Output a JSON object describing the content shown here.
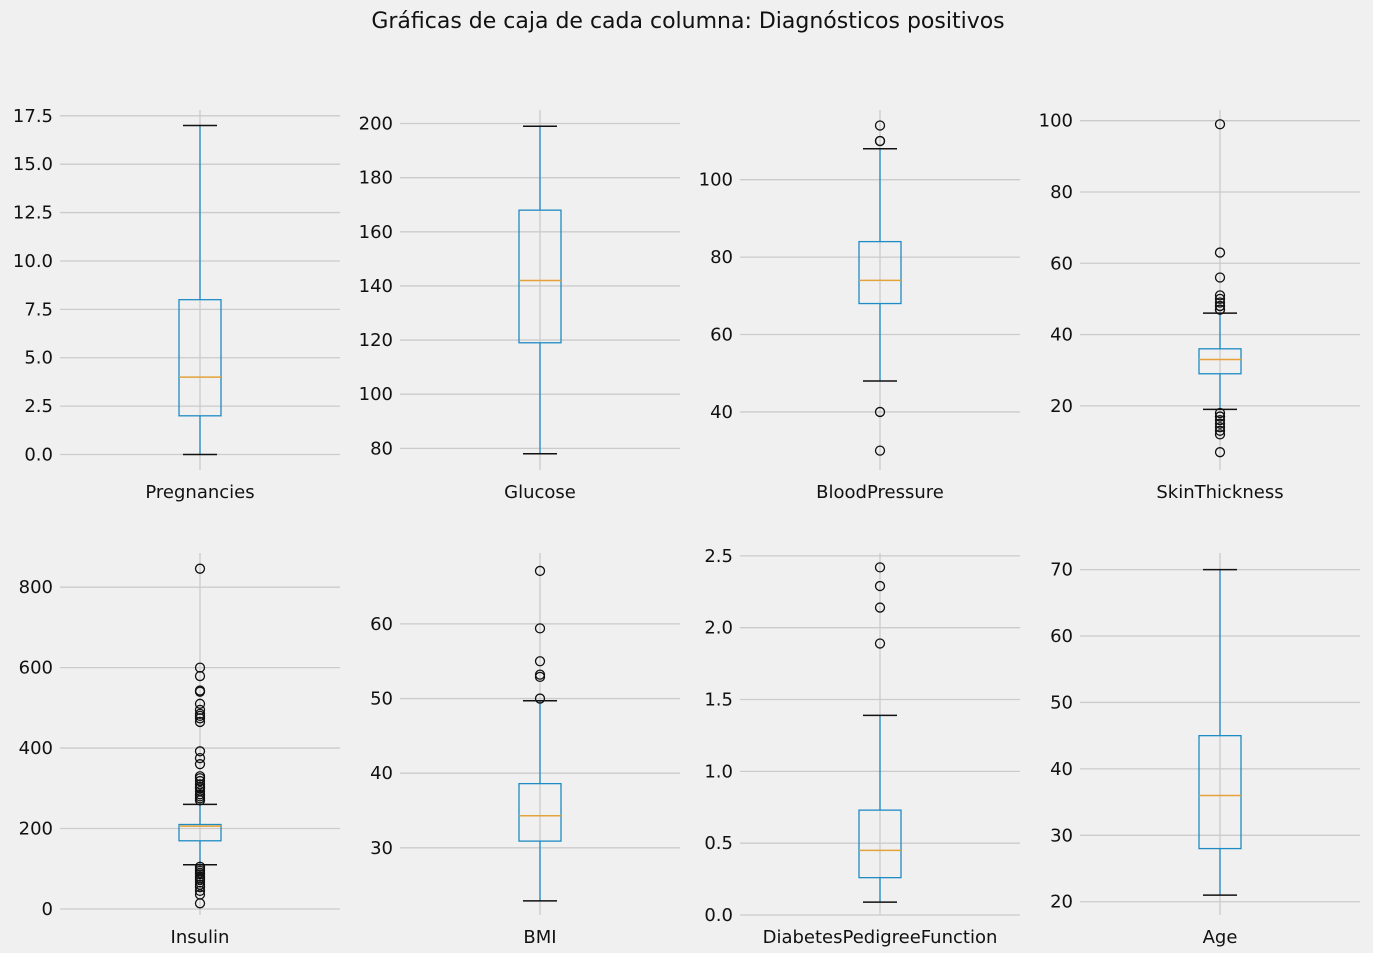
{
  "title": "Gráficas de caja de cada columna: Diagnósticos positivos",
  "colors": {
    "background": "#f0f0f0",
    "grid": "#cbcbcb",
    "box": "#1f8bc4",
    "median": "#e3a23a",
    "cap": "#111111"
  },
  "chart_data": [
    {
      "type": "box",
      "label": "Pregnancies",
      "ylim": [
        -0.8,
        17.8
      ],
      "ticks": [
        0.0,
        2.5,
        5.0,
        7.5,
        10.0,
        12.5,
        15.0,
        17.5
      ],
      "tick_labels": [
        "0.0",
        "2.5",
        "5.0",
        "7.5",
        "10.0",
        "12.5",
        "15.0",
        "17.5"
      ],
      "q1": 2,
      "median": 4,
      "q3": 8,
      "whisker_low": 0,
      "whisker_high": 17,
      "outliers": []
    },
    {
      "type": "box",
      "label": "Glucose",
      "ylim": [
        72,
        205
      ],
      "ticks": [
        80,
        100,
        120,
        140,
        160,
        180,
        200
      ],
      "tick_labels": [
        "80",
        "100",
        "120",
        "140",
        "160",
        "180",
        "200"
      ],
      "q1": 119,
      "median": 142,
      "q3": 168,
      "whisker_low": 78,
      "whisker_high": 199,
      "outliers": []
    },
    {
      "type": "box",
      "label": "BloodPressure",
      "ylim": [
        25,
        118
      ],
      "ticks": [
        40,
        60,
        80,
        100
      ],
      "tick_labels": [
        "40",
        "60",
        "80",
        "100"
      ],
      "q1": 68,
      "median": 74,
      "q3": 84,
      "whisker_low": 48,
      "whisker_high": 108,
      "outliers": [
        30,
        40,
        110,
        110,
        114
      ]
    },
    {
      "type": "box",
      "label": "SkinThickness",
      "ylim": [
        2,
        103
      ],
      "ticks": [
        20,
        40,
        60,
        80,
        100
      ],
      "tick_labels": [
        "20",
        "40",
        "60",
        "80",
        "100"
      ],
      "q1": 29,
      "median": 33,
      "q3": 36,
      "whisker_low": 19,
      "whisker_high": 46,
      "outliers": [
        7,
        12,
        13,
        14,
        15,
        16,
        17,
        17,
        18,
        47,
        47,
        48,
        48,
        49,
        50,
        51,
        56,
        63,
        99
      ]
    },
    {
      "type": "box",
      "label": "Insulin",
      "ylim": [
        -15,
        885
      ],
      "ticks": [
        0,
        200,
        400,
        600,
        800
      ],
      "tick_labels": [
        "0",
        "200",
        "400",
        "600",
        "800"
      ],
      "q1": 169.5,
      "median": 206,
      "q3": 210,
      "whisker_low": 110,
      "whisker_high": 260,
      "outliers": [
        14,
        36,
        45,
        54,
        60,
        66,
        72,
        76,
        80,
        86,
        90,
        95,
        100,
        105,
        270,
        275,
        280,
        285,
        293,
        300,
        304,
        310,
        318,
        325,
        330,
        360,
        375,
        392,
        465,
        474,
        480,
        485,
        495,
        510,
        540,
        543,
        579,
        600,
        846
      ]
    },
    {
      "type": "box",
      "label": "BMI",
      "ylim": [
        21,
        69.5
      ],
      "ticks": [
        30,
        40,
        50,
        60
      ],
      "tick_labels": [
        "30",
        "40",
        "50",
        "60"
      ],
      "q1": 30.9,
      "median": 34.3,
      "q3": 38.6,
      "whisker_low": 22.9,
      "whisker_high": 49.7,
      "outliers": [
        50.0,
        52.9,
        53.2,
        55.0,
        59.4,
        67.1
      ]
    },
    {
      "type": "box",
      "label": "DiabetesPedigreeFunction",
      "ylim": [
        0.0,
        2.52
      ],
      "ticks": [
        0.0,
        0.5,
        1.0,
        1.5,
        2.0,
        2.5
      ],
      "tick_labels": [
        "0.0",
        "0.5",
        "1.0",
        "1.5",
        "2.0",
        "2.5"
      ],
      "q1": 0.26,
      "median": 0.45,
      "q3": 0.73,
      "whisker_low": 0.09,
      "whisker_high": 1.39,
      "outliers": [
        1.89,
        2.14,
        2.29,
        2.42
      ]
    },
    {
      "type": "box",
      "label": "Age",
      "ylim": [
        18,
        72.5
      ],
      "ticks": [
        20,
        30,
        40,
        50,
        60,
        70
      ],
      "tick_labels": [
        "20",
        "30",
        "40",
        "50",
        "60",
        "70"
      ],
      "q1": 28,
      "median": 36,
      "q3": 45,
      "whisker_low": 21,
      "whisker_high": 70,
      "outliers": []
    }
  ]
}
